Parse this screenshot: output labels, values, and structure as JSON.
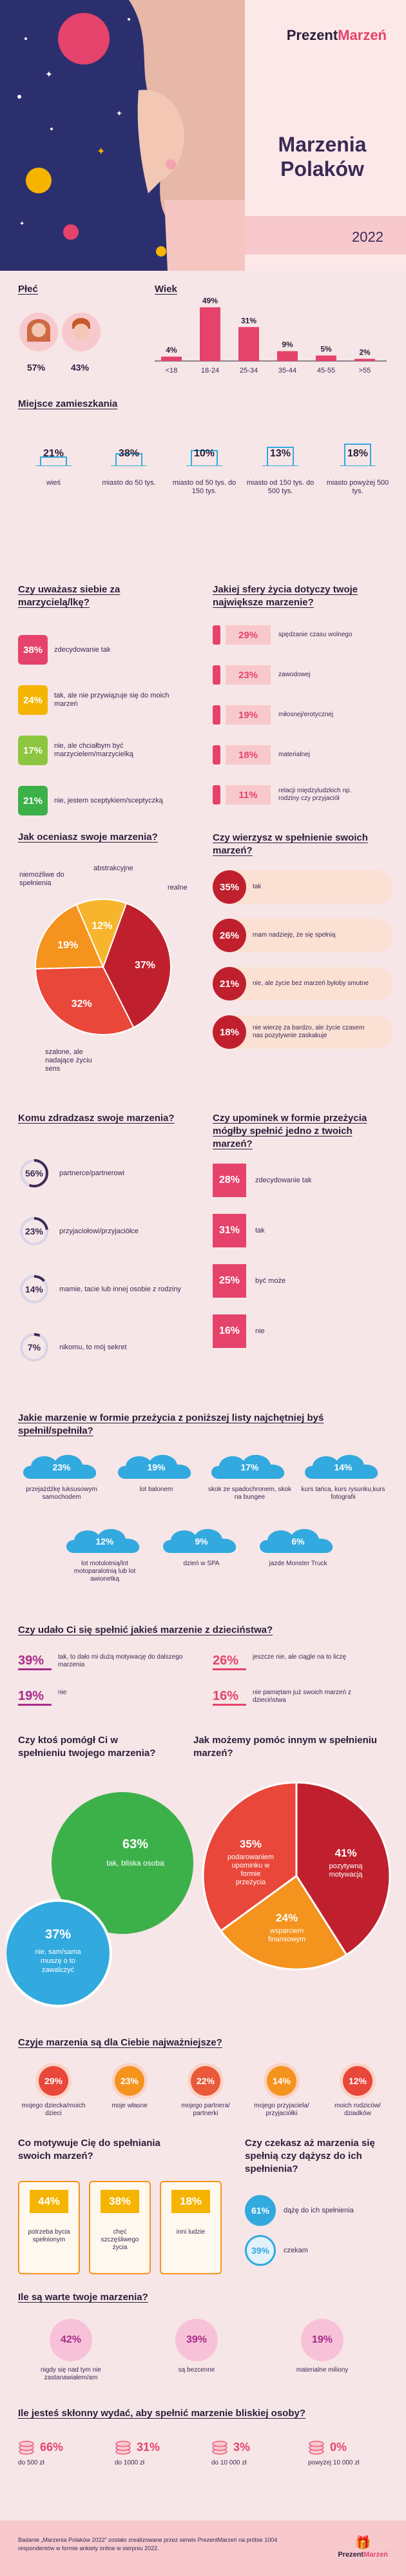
{
  "brand": {
    "prefix": "Prezent",
    "suffix": "Marzeń",
    "accent": "#e5436b",
    "dark": "#3a2a55",
    "orange": "#f4931e",
    "green": "#3cb14a",
    "cyan": "#32a9df",
    "pink": "#f7c9cd",
    "purple": "#a72a8a"
  },
  "hero": {
    "title_line1": "Marzenia",
    "title_line2": "Polaków",
    "year": "2022"
  },
  "gender": {
    "title": "Płeć",
    "female": "57%",
    "male": "43%"
  },
  "age": {
    "title": "Wiek"
  },
  "residence": {
    "title": "Miejsce zamieszkania",
    "items": [
      {
        "pct": "21%",
        "label": "wieś"
      },
      {
        "pct": "38%",
        "label": "miasto do 50 tys."
      },
      {
        "pct": "10%",
        "label": "miasto od 50 tys. do 150 tys."
      },
      {
        "pct": "13%",
        "label": "miasto od 150 tys. do 500 tys."
      },
      {
        "pct": "18%",
        "label": "miasto powyżej 500 tys."
      }
    ]
  },
  "dreamer": {
    "title": "Czy uważasz siebie za marzycielą/lkę?",
    "items": [
      {
        "pct": "38%",
        "label": "zdecydowanie tak",
        "color": "#e5436b"
      },
      {
        "pct": "24%",
        "label": "tak, ale nie przywiązuje się do moich marzeń",
        "color": "#f4b400"
      },
      {
        "pct": "17%",
        "label": "nie, ale chciałbym być marzycielem/marzycielką",
        "color": "#8cc63f"
      },
      {
        "pct": "21%",
        "label": "nie, jestem sceptykiem/sceptyczką",
        "color": "#3cb14a"
      }
    ]
  },
  "sphere": {
    "title": "Jakiej sfery życia dotyczy twoje największe marzenie?",
    "items": [
      {
        "pct": "29%",
        "label": "spędzanie czasu wolnego"
      },
      {
        "pct": "23%",
        "label": "zawodowej"
      },
      {
        "pct": "19%",
        "label": "miłosnej/erotycznej"
      },
      {
        "pct": "18%",
        "label": "materialnej"
      },
      {
        "pct": "11%",
        "label": "relacji międzyludzkich np. rodziny czy przyjaciół"
      }
    ]
  },
  "assess": {
    "title": "Jak oceniasz swoje marzenia?"
  },
  "believe": {
    "title": "Czy wierzysz w spełnienie swoich marzeń?",
    "items": [
      {
        "pct": "35%",
        "label": "tak"
      },
      {
        "pct": "26%",
        "label": "mam nadzieję, że się spełnią"
      },
      {
        "pct": "21%",
        "label": "nie, ale życie bez marzeń byłoby smutne"
      },
      {
        "pct": "18%",
        "label": "nie wierzę za bardzo, ale życie czasem nas pozytywnie zaskakuje"
      }
    ]
  },
  "confide": {
    "title": "Komu zdradzasz swoje marzenia?",
    "items": [
      {
        "pct": "56%",
        "label": "partnerce/partnerowi"
      },
      {
        "pct": "23%",
        "label": "przyjaciołowi/przyjaciółce"
      },
      {
        "pct": "14%",
        "label": "mamie, tacie lub innej osobie z rodziny"
      },
      {
        "pct": "7%",
        "label": "nikomu, to mój sekret"
      }
    ]
  },
  "gift": {
    "title": "Czy upominek w formie przeżycia mógłby spełnić jedno z twoich marzeń?",
    "items": [
      {
        "pct": "28%",
        "label": "zdecydowanie tak"
      },
      {
        "pct": "31%",
        "label": "tak"
      },
      {
        "pct": "25%",
        "label": "być może"
      },
      {
        "pct": "16%",
        "label": "nie"
      }
    ]
  },
  "experience": {
    "title": "Jakie marzenie w formie przeżycia z poniższej listy najchętniej byś spełnił/spełniła?",
    "row1": [
      {
        "pct": "23%",
        "label": "przejażdżkę luksusowym samochodem"
      },
      {
        "pct": "19%",
        "label": "lot balonem"
      },
      {
        "pct": "17%",
        "label": "skok ze spadochronem, skok na bungee"
      },
      {
        "pct": "14%",
        "label": "kurs tańca, kurs rysunku,kurs fotografii"
      }
    ],
    "row2": [
      {
        "pct": "12%",
        "label": "lot motolotnią/lot motoparalotnią lub lot awionetką"
      },
      {
        "pct": "9%",
        "label": "dzień w SPA"
      },
      {
        "pct": "6%",
        "label": "jazde Monster Truck"
      }
    ]
  },
  "childhood": {
    "title": "Czy udało Ci się spełnić jakieś marzenie z dzieciństwa?",
    "items": [
      {
        "pct": "39%",
        "label": "tak, to dało mi dużą motywację do dalszego marzenia"
      },
      {
        "pct": "26%",
        "label": "jeszcze nie, ale ciągle na to liczę"
      },
      {
        "pct": "19%",
        "label": "nie"
      },
      {
        "pct": "16%",
        "label": "nie pamiętam już swoich marzeń z dzieciństwa"
      }
    ]
  },
  "helped": {
    "title": "Czy ktoś pomógł Ci w spełnieniu twojego marzenia?",
    "yes_pct": "63%",
    "yes_label": "tak, bliska osoba",
    "no_pct": "37%",
    "no_label": "nie, sam/sama muszę o to zawalczyć"
  },
  "help_others": {
    "title": "Jak możemy pomóc innym w spełnieniu marzeń?"
  },
  "whose": {
    "title": "Czyje marzenia są dla Ciebie najważniejsze?",
    "items": [
      {
        "pct": "29%",
        "label": "mojego dziecka/moich dzieci",
        "color": "#e8473a"
      },
      {
        "pct": "23%",
        "label": "moje własne",
        "color": "#f4931e"
      },
      {
        "pct": "22%",
        "label": "mojego partnera/ partnerki",
        "color": "#e85a3a"
      },
      {
        "pct": "14%",
        "label": "mojego przyjaciela/ przyjaciółki",
        "color": "#f4931e"
      },
      {
        "pct": "12%",
        "label": "moich rodziców/ dziadków",
        "color": "#e8473a"
      }
    ]
  },
  "motivate": {
    "title": "Co motywuje Cię do spełniania swoich marzeń?",
    "items": [
      {
        "pct": "44%",
        "label": "potrzeba bycia spełnionym"
      },
      {
        "pct": "38%",
        "label": "chęć szczęśliwego życia"
      },
      {
        "pct": "18%",
        "label": "inni ludzie"
      }
    ]
  },
  "waiting": {
    "title": "Czy czekasz aż marzenia się spełnią czy dążysz do ich spełnienia?",
    "items": [
      {
        "pct": "61%",
        "label": "dążę do ich spełnienia"
      },
      {
        "pct": "39%",
        "label": "czekam"
      }
    ]
  },
  "worth": {
    "title": "Ile są warte twoje marzenia?",
    "items": [
      {
        "pct": "42%",
        "label": "nigdy się nad tym nie zastanawiałem/am"
      },
      {
        "pct": "39%",
        "label": "są bezcenne"
      },
      {
        "pct": "19%",
        "label": "materialne miliony"
      }
    ]
  },
  "spend": {
    "title": "Ile jesteś skłonny wydać, aby spełnić marzenie bliskiej osoby?",
    "items": [
      {
        "pct": "66%",
        "label": "do 500 zł"
      },
      {
        "pct": "31%",
        "label": "do 1000 zł"
      },
      {
        "pct": "3%",
        "label": "do 10 000 zł"
      },
      {
        "pct": "0%",
        "label": "powyżej 10 000 zł"
      }
    ]
  },
  "footer": {
    "text": "Badanie „Marzenia Polaków 2022” zostało zrealizowane przez serwis PrezentMarzeń na próbie 1004 respondentów w formie ankiety online w sierpniu 2022."
  },
  "chart_data": [
    {
      "type": "bar",
      "title": "Wiek",
      "categories": [
        "<18",
        "18-24",
        "25-34",
        "35-44",
        "45-55",
        ">55"
      ],
      "values": [
        4,
        49,
        31,
        9,
        5,
        2
      ],
      "ylim": [
        0,
        50
      ]
    },
    {
      "type": "pie",
      "title": "Jak oceniasz swoje marzenia?",
      "categories": [
        "realne",
        "szalone, ale nadające życiu sens",
        "niemożliwe do spełnienia",
        "abstrakcyjne"
      ],
      "values": [
        37,
        32,
        19,
        12
      ]
    },
    {
      "type": "pie",
      "title": "Jak możemy pomóc innym w spełnieniu marzeń?",
      "categories": [
        "pozytywną motywacją",
        "wsparciem finansowym",
        "podarowaniem upominku w formie przeżycia"
      ],
      "values": [
        41,
        24,
        35
      ]
    }
  ]
}
